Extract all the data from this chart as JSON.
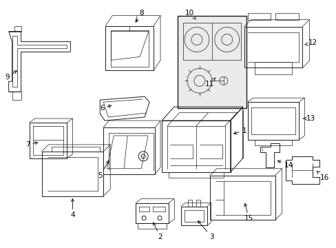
{
  "bg_color": "#ffffff",
  "line_color": "#1a1a1a",
  "label_color": "#000000",
  "figsize": [
    4.89,
    3.6
  ],
  "dpi": 100,
  "lw": 0.7,
  "fs": 7.5
}
